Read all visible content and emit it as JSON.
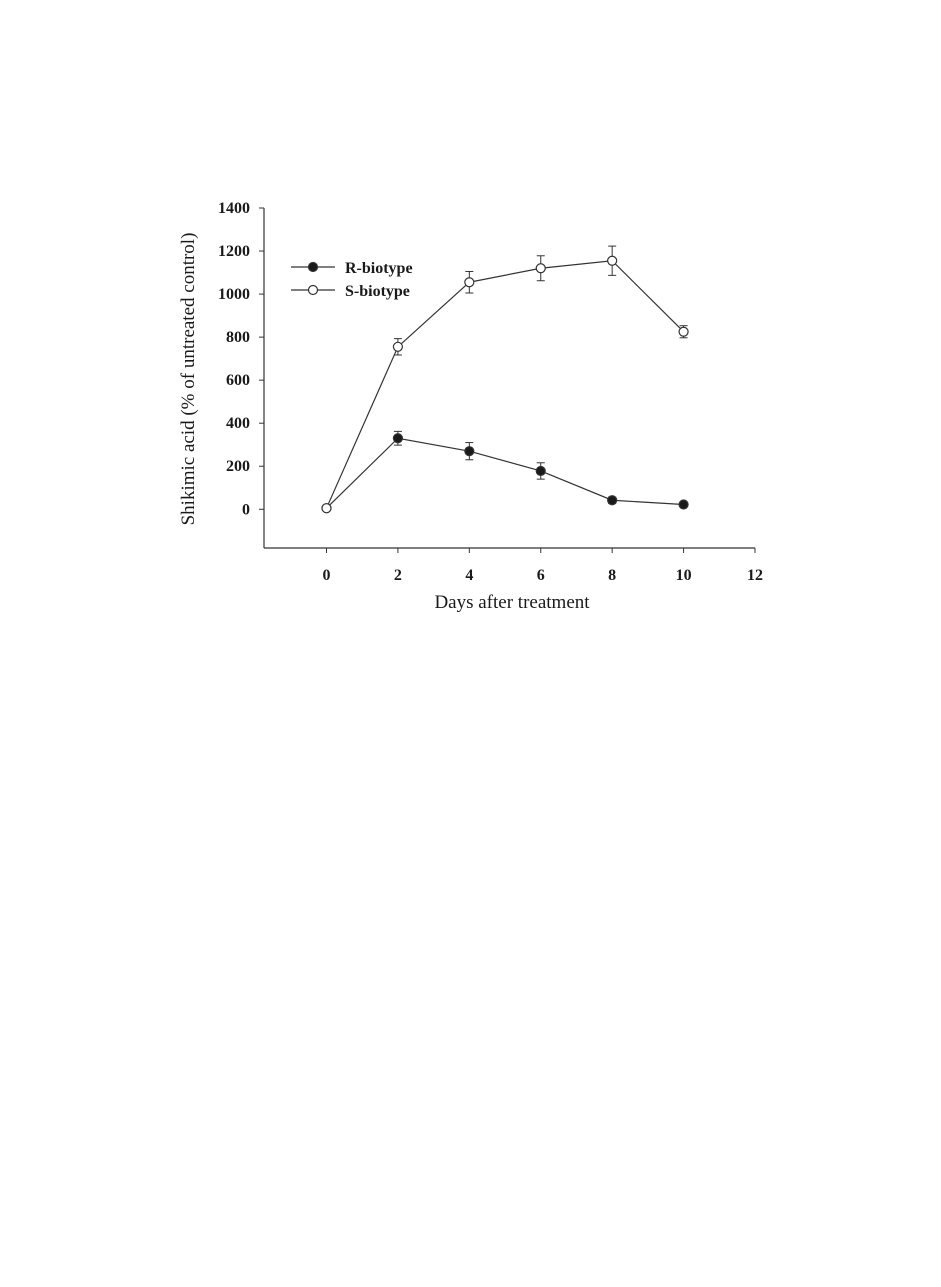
{
  "chart_data": {
    "type": "line",
    "xlabel": "Days after treatment",
    "ylabel": "Shikimic acid (% of untreated control)",
    "xlim": [
      -1.75,
      12
    ],
    "ylim": [
      -180,
      1400
    ],
    "x_ticks": [
      0,
      2,
      4,
      6,
      8,
      10,
      12
    ],
    "y_ticks": [
      0,
      200,
      400,
      600,
      800,
      1000,
      1200,
      1400
    ],
    "grid": false,
    "legend_position": "top-left",
    "series": [
      {
        "name": "R-biotype",
        "marker": "filled-circle",
        "x": [
          0,
          2,
          4,
          6,
          8,
          10
        ],
        "values": [
          5,
          330,
          270,
          178,
          42,
          22
        ],
        "error": [
          0,
          32,
          40,
          38,
          15,
          0
        ]
      },
      {
        "name": "S-biotype",
        "marker": "open-circle",
        "x": [
          0,
          2,
          4,
          6,
          8,
          10
        ],
        "values": [
          5,
          755,
          1055,
          1120,
          1155,
          825
        ],
        "error": [
          0,
          38,
          50,
          58,
          68,
          28
        ]
      }
    ],
    "colors": {
      "line": "#333333",
      "axis": "#333333",
      "marker_fill": "#1a1a1a",
      "marker_open_fill": "#ffffff"
    }
  }
}
